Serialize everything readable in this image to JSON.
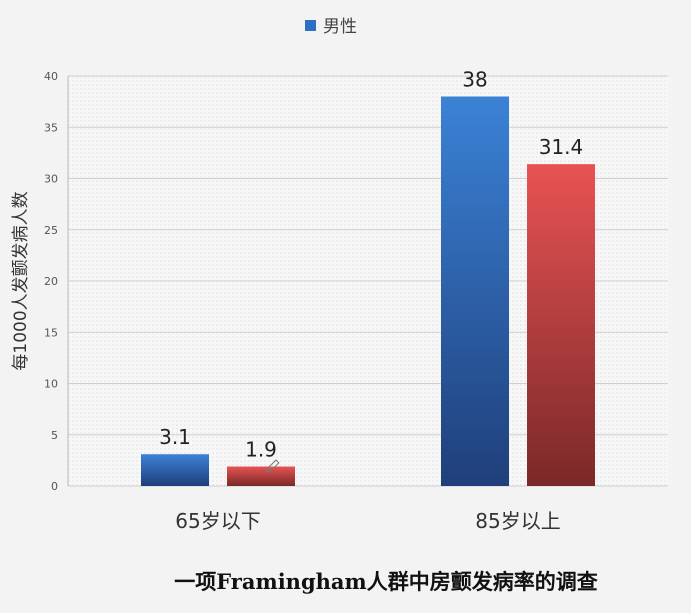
{
  "chart_data": {
    "type": "bar",
    "title": "一项Framingham人群中房颤发病率的调查",
    "ylabel": "每1000人发颤发病人数",
    "xlabel": "",
    "categories": [
      "65岁以下",
      "85岁以上"
    ],
    "series": [
      {
        "name": "男性",
        "values": [
          3.1,
          38
        ],
        "color": "#2e6fc4"
      },
      {
        "name": "",
        "values": [
          1.9,
          31.4
        ],
        "color": "#d94848"
      }
    ],
    "ylim": [
      0,
      40
    ],
    "yticks": [
      0,
      5,
      10,
      15,
      20,
      25,
      30,
      35,
      40
    ],
    "grid": true,
    "legend_position": "top-center",
    "annotation_icon": "pencil-icon"
  }
}
